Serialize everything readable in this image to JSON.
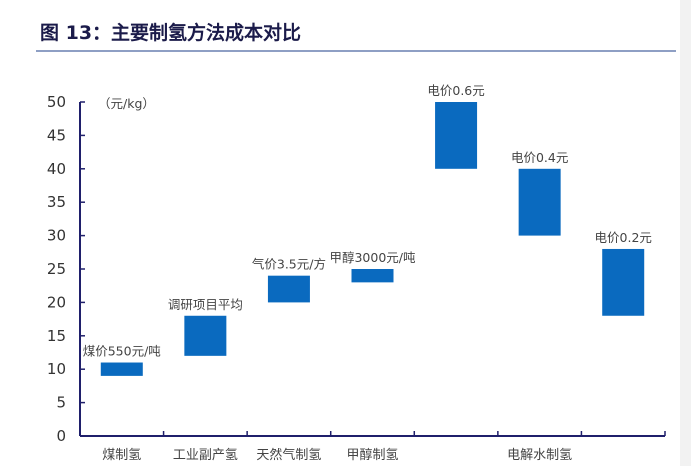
{
  "title": "图 13：主要制氢方法成本对比",
  "chart_data": {
    "type": "bar",
    "subtype": "floating-range",
    "title": "图 13：主要制氢方法成本对比",
    "unit_label": "（元/kg）",
    "ylim": [
      0,
      50
    ],
    "yticks": [
      0,
      5,
      10,
      15,
      20,
      25,
      30,
      35,
      40,
      45,
      50
    ],
    "grid": false,
    "categories": [
      "煤制氢",
      "工业副产氢",
      "天然气制氢",
      "甲醇制氢",
      "电解水制氢"
    ],
    "bars": [
      {
        "category": "煤制氢",
        "label": "煤价550元/吨",
        "low": 9,
        "high": 11
      },
      {
        "category": "工业副产氢",
        "label": "调研项目平均",
        "low": 12,
        "high": 18
      },
      {
        "category": "天然气制氢",
        "label": "气价3.5元/方",
        "low": 20,
        "high": 24
      },
      {
        "category": "甲醇制氢",
        "label": "甲醇3000元/吨",
        "low": 23,
        "high": 25
      },
      {
        "category": "电解水制氢",
        "label": "电价0.6元",
        "low": 40,
        "high": 50
      },
      {
        "category": "电解水制氢",
        "label": "电价0.4元",
        "low": 30,
        "high": 40
      },
      {
        "category": "电解水制氢",
        "label": "电价0.2元",
        "low": 18,
        "high": 28
      }
    ],
    "bar_color": "#0a6abf",
    "axis_color": "#1f1f6b"
  }
}
